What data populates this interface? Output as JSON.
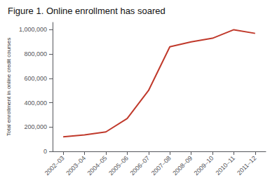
{
  "chart_data": {
    "type": "line",
    "title": "Figure 1. Online enrollment has soared",
    "ylabel": "Total enrollment in online credit courses",
    "categories": [
      "2002–03",
      "2003–04",
      "2004–05",
      "2005–06",
      "2006–07",
      "2007–08",
      "2008–09",
      "2009–10",
      "2010–11",
      "2011–12"
    ],
    "values": [
      120000,
      135000,
      160000,
      270000,
      500000,
      860000,
      900000,
      930000,
      1000000,
      970000
    ],
    "color": "#c0392b",
    "ylim": [
      0,
      1060000
    ],
    "yticks": [
      0,
      {
        "value": 200000,
        "label": "200,000"
      },
      {
        "value": 400000,
        "label": "400,000"
      },
      {
        "value": 600000,
        "label": "600,000"
      },
      {
        "value": 800000,
        "label": "800,000"
      },
      {
        "value": 1000000,
        "label": "1,000,000"
      }
    ],
    "grid": false
  }
}
